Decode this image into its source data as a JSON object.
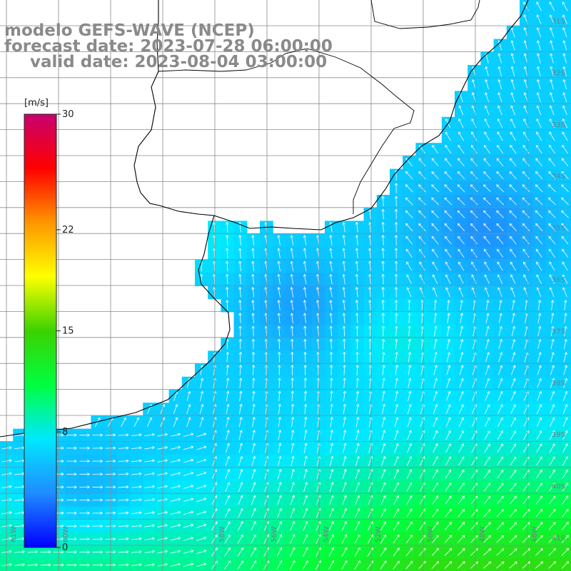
{
  "title": {
    "line1": "modelo GEFS-WAVE (NCEP)",
    "line2": "forecast date: 2023-07-28 06:00:00",
    "line3": "valid date: 2023-08-04 03:00:00"
  },
  "colorbar": {
    "unit": "[m/s]",
    "ticks": [
      {
        "label": "30",
        "value": 30
      },
      {
        "label": "22",
        "value": 22
      },
      {
        "label": "15",
        "value": 15
      },
      {
        "label": "8",
        "value": 8
      },
      {
        "label": "0",
        "value": 0
      }
    ],
    "colors": [
      "#0000ff",
      "#1f8cff",
      "#00e8ff",
      "#00ff40",
      "#3cd200",
      "#ffff00",
      "#ff9600",
      "#ff0000",
      "#c8006e"
    ]
  },
  "lat_labels": [
    "31S",
    "32S",
    "33S",
    "34S",
    "35S",
    "36S",
    "37S",
    "38S",
    "39S",
    "40S",
    "41S"
  ],
  "lon_labels": [
    "61W",
    "60W",
    "58W",
    "56W",
    "54W",
    "52W",
    "50W",
    "48W",
    "46W"
  ],
  "colors": {
    "land": "#ffffff",
    "grid": "#8a8a8a",
    "coast": "#000000",
    "arrows": "#ffffff",
    "title": "#8a8a8a"
  }
}
